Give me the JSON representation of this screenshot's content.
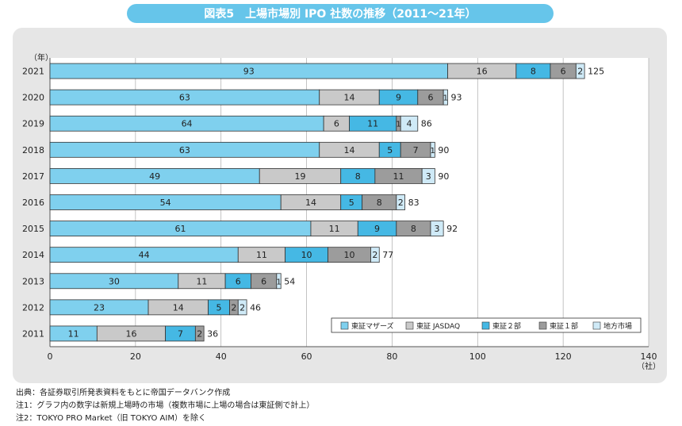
{
  "title": "図表5　上場市場別 IPO 社数の推移（2011～21年）",
  "chart_data": {
    "type": "bar",
    "orientation": "horizontal",
    "stacked": true,
    "y_unit_label": "（年）",
    "x_unit_label": "（社）",
    "categories": [
      "2021",
      "2020",
      "2019",
      "2018",
      "2017",
      "2016",
      "2015",
      "2014",
      "2013",
      "2012",
      "2011"
    ],
    "series": [
      {
        "name": "東証マザーズ",
        "color": "#7fd0ee",
        "values": [
          93,
          63,
          64,
          63,
          49,
          54,
          61,
          44,
          30,
          23,
          11
        ]
      },
      {
        "name": "東証 JASDAQ",
        "color": "#c9c9c9",
        "values": [
          16,
          14,
          6,
          14,
          19,
          14,
          11,
          11,
          11,
          14,
          16
        ]
      },
      {
        "name": "東証２部",
        "color": "#45b8e4",
        "values": [
          8,
          9,
          11,
          5,
          8,
          5,
          9,
          10,
          6,
          5,
          7
        ]
      },
      {
        "name": "東証１部",
        "color": "#9c9c9c",
        "values": [
          6,
          6,
          1,
          7,
          11,
          8,
          8,
          10,
          6,
          2,
          2
        ]
      },
      {
        "name": "地方市場",
        "color": "#cfeaf7",
        "values": [
          2,
          1,
          4,
          1,
          3,
          2,
          3,
          2,
          1,
          2,
          0
        ]
      }
    ],
    "totals": [
      125,
      93,
      86,
      90,
      90,
      83,
      92,
      77,
      54,
      46,
      36
    ],
    "xlim": [
      0,
      140
    ],
    "xticks": [
      0,
      20,
      40,
      60,
      80,
      100,
      120,
      140
    ],
    "grid": true,
    "legend_position": "bottom-right"
  },
  "notes": [
    "出典：各証券取引所発表資料をもとに帝国データバンク作成",
    "注1：グラフ内の数字は新規上場時の市場（複数市場に上場の場合は東証側で計上）",
    "注2：TOKYO PRO Market（旧 TOKYO AIM）を除く"
  ]
}
